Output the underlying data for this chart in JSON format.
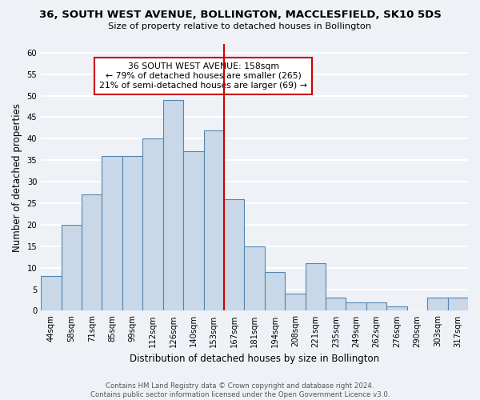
{
  "title": "36, SOUTH WEST AVENUE, BOLLINGTON, MACCLESFIELD, SK10 5DS",
  "subtitle": "Size of property relative to detached houses in Bollington",
  "xlabel": "Distribution of detached houses by size in Bollington",
  "ylabel": "Number of detached properties",
  "bin_labels": [
    "44sqm",
    "58sqm",
    "71sqm",
    "85sqm",
    "99sqm",
    "112sqm",
    "126sqm",
    "140sqm",
    "153sqm",
    "167sqm",
    "181sqm",
    "194sqm",
    "208sqm",
    "221sqm",
    "235sqm",
    "249sqm",
    "262sqm",
    "276sqm",
    "290sqm",
    "303sqm",
    "317sqm"
  ],
  "bar_heights": [
    8,
    20,
    27,
    36,
    36,
    40,
    49,
    37,
    42,
    26,
    15,
    9,
    4,
    11,
    3,
    2,
    2,
    1,
    0,
    3,
    3
  ],
  "bar_color": "#c8d8e8",
  "bar_edge_color": "#5585b0",
  "vline_x": 9,
  "vline_color": "#cc0000",
  "ylim": [
    0,
    62
  ],
  "yticks": [
    0,
    5,
    10,
    15,
    20,
    25,
    30,
    35,
    40,
    45,
    50,
    55,
    60
  ],
  "annotation_title": "36 SOUTH WEST AVENUE: 158sqm",
  "annotation_line1": "← 79% of detached houses are smaller (265)",
  "annotation_line2": "21% of semi-detached houses are larger (69) →",
  "annotation_box_color": "#ffffff",
  "annotation_box_edge": "#cc0000",
  "footer1": "Contains HM Land Registry data © Crown copyright and database right 2024.",
  "footer2": "Contains public sector information licensed under the Open Government Licence v3.0.",
  "background_color": "#eef2f7",
  "grid_color": "#ffffff"
}
